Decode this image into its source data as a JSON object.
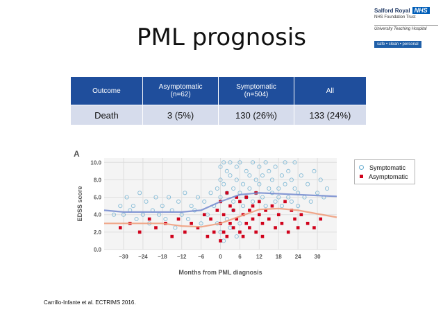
{
  "slide": {
    "title": "PML prognosis",
    "citation": "Carrillo-Infante et al. ECTRIMS 2016."
  },
  "logo": {
    "org": "Salford Royal",
    "nhs": "NHS",
    "trust": "NHS Foundation Trust",
    "hospital": "University Teaching Hospital",
    "tagline": "safe • clean • personal"
  },
  "table": {
    "headers": [
      {
        "line1": "Outcome",
        "line2": ""
      },
      {
        "line1": "Asymptomatic",
        "line2": "(n=62)"
      },
      {
        "line1": "Symptomatic",
        "line2": "(n=504)"
      },
      {
        "line1": "All",
        "line2": ""
      }
    ],
    "rows": [
      [
        "Death",
        "3 (5%)",
        "130 (26%)",
        "133 (24%)"
      ]
    ]
  },
  "legend": {
    "symptomatic": "Symptomatic",
    "asymptomatic": "Asymptomatic"
  },
  "colors": {
    "table_header": "#1f4e9c",
    "table_row": "#d6dcec",
    "symptomatic": "#6aaed0",
    "asymptomatic": "#d0021b",
    "symptomatic_line": "#7a8fd0",
    "asymptomatic_line": "#f0a080"
  },
  "chart_data": {
    "type": "scatter",
    "panel_label": "A",
    "xlabel": "Months from PML diagnosis",
    "ylabel": "EDSS score",
    "xlim": [
      -36,
      36
    ],
    "ylim": [
      0,
      10.5
    ],
    "x_ticks": [
      -30,
      -24,
      -18,
      -12,
      -6,
      0,
      6,
      12,
      18,
      24,
      30
    ],
    "x_tick_labels": [
      "−30",
      "−24",
      "−18",
      "−12",
      "−6",
      "0",
      "6",
      "12",
      "18",
      "24",
      "30"
    ],
    "y_ticks": [
      0,
      2,
      4,
      6,
      8,
      10
    ],
    "y_tick_labels": [
      "0.0",
      "2.0",
      "4.0",
      "6.0",
      "8.0",
      "10.0"
    ],
    "grid": true,
    "series": [
      {
        "name": "Symptomatic",
        "marker": "circle",
        "points": [
          [
            -33,
            4.0
          ],
          [
            -31,
            5.0
          ],
          [
            -30,
            4.0
          ],
          [
            -29,
            6.0
          ],
          [
            -28,
            4.5
          ],
          [
            -27,
            5.0
          ],
          [
            -26,
            3.5
          ],
          [
            -25,
            6.5
          ],
          [
            -24,
            4.0
          ],
          [
            -23,
            5.5
          ],
          [
            -22,
            3.0
          ],
          [
            -21,
            4.5
          ],
          [
            -20,
            6.0
          ],
          [
            -19,
            4.0
          ],
          [
            -18,
            5.0
          ],
          [
            -17,
            3.5
          ],
          [
            -16,
            6.0
          ],
          [
            -15,
            4.5
          ],
          [
            -14,
            2.5
          ],
          [
            -13,
            5.5
          ],
          [
            -12,
            4.0
          ],
          [
            -11,
            6.5
          ],
          [
            -10,
            3.5
          ],
          [
            -9,
            5.0
          ],
          [
            -8,
            4.5
          ],
          [
            -7,
            6.0
          ],
          [
            -6,
            3.0
          ],
          [
            -5,
            5.5
          ],
          [
            -4,
            4.0
          ],
          [
            -3,
            6.5
          ],
          [
            -2,
            5.0
          ],
          [
            -1,
            7.0
          ],
          [
            0,
            6.0
          ],
          [
            0,
            8.0
          ],
          [
            0,
            9.5
          ],
          [
            1,
            10.0
          ],
          [
            1,
            7.5
          ],
          [
            2,
            9.0
          ],
          [
            2,
            6.5
          ],
          [
            3,
            8.5
          ],
          [
            3,
            10.0
          ],
          [
            4,
            7.0
          ],
          [
            4,
            5.5
          ],
          [
            5,
            9.5
          ],
          [
            5,
            8.0
          ],
          [
            6,
            6.5
          ],
          [
            6,
            10.0
          ],
          [
            7,
            7.5
          ],
          [
            7,
            5.0
          ],
          [
            8,
            9.0
          ],
          [
            8,
            6.0
          ],
          [
            9,
            8.5
          ],
          [
            9,
            7.0
          ],
          [
            10,
            10.0
          ],
          [
            10,
            5.5
          ],
          [
            11,
            8.0
          ],
          [
            11,
            6.5
          ],
          [
            12,
            9.5
          ],
          [
            12,
            7.5
          ],
          [
            13,
            6.0
          ],
          [
            13,
            8.5
          ],
          [
            14,
            10.0
          ],
          [
            14,
            5.0
          ],
          [
            15,
            7.0
          ],
          [
            15,
            9.0
          ],
          [
            16,
            6.5
          ],
          [
            16,
            8.0
          ],
          [
            17,
            5.5
          ],
          [
            17,
            9.5
          ],
          [
            18,
            7.0
          ],
          [
            18,
            6.0
          ],
          [
            19,
            8.5
          ],
          [
            19,
            5.0
          ],
          [
            20,
            10.0
          ],
          [
            20,
            7.5
          ],
          [
            21,
            6.0
          ],
          [
            21,
            9.0
          ],
          [
            22,
            5.5
          ],
          [
            22,
            8.0
          ],
          [
            23,
            7.0
          ],
          [
            23,
            10.0
          ],
          [
            24,
            6.5
          ],
          [
            24,
            5.0
          ],
          [
            25,
            8.5
          ],
          [
            26,
            6.0
          ],
          [
            27,
            7.5
          ],
          [
            28,
            5.5
          ],
          [
            29,
            9.0
          ],
          [
            30,
            6.5
          ],
          [
            31,
            8.0
          ],
          [
            32,
            6.0
          ],
          [
            33,
            7.0
          ],
          [
            -1,
            3.0
          ],
          [
            0,
            2.0
          ],
          [
            1,
            1.0
          ],
          [
            2,
            3.5
          ],
          [
            3,
            2.5
          ],
          [
            4,
            4.5
          ],
          [
            5,
            1.5
          ],
          [
            6,
            3.0
          ]
        ]
      },
      {
        "name": "Asymptomatic",
        "marker": "square",
        "points": [
          [
            -31,
            2.5
          ],
          [
            -28,
            3.0
          ],
          [
            -25,
            2.0
          ],
          [
            -22,
            3.5
          ],
          [
            -20,
            2.5
          ],
          [
            -17,
            3.0
          ],
          [
            -15,
            1.5
          ],
          [
            -13,
            3.5
          ],
          [
            -11,
            2.0
          ],
          [
            -9,
            3.0
          ],
          [
            -7,
            2.5
          ],
          [
            -5,
            4.0
          ],
          [
            -4,
            1.5
          ],
          [
            -3,
            3.5
          ],
          [
            -2,
            2.0
          ],
          [
            -1,
            4.5
          ],
          [
            0,
            1.0
          ],
          [
            0,
            3.0
          ],
          [
            0,
            5.5
          ],
          [
            1,
            2.0
          ],
          [
            1,
            4.0
          ],
          [
            2,
            6.5
          ],
          [
            2,
            1.5
          ],
          [
            3,
            3.0
          ],
          [
            3,
            5.0
          ],
          [
            4,
            2.5
          ],
          [
            4,
            4.5
          ],
          [
            5,
            6.0
          ],
          [
            5,
            3.5
          ],
          [
            6,
            2.0
          ],
          [
            6,
            5.5
          ],
          [
            7,
            4.0
          ],
          [
            7,
            1.5
          ],
          [
            8,
            3.0
          ],
          [
            8,
            6.0
          ],
          [
            9,
            4.5
          ],
          [
            9,
            2.5
          ],
          [
            10,
            5.0
          ],
          [
            10,
            3.5
          ],
          [
            11,
            6.5
          ],
          [
            11,
            2.0
          ],
          [
            12,
            4.0
          ],
          [
            12,
            5.5
          ],
          [
            13,
            3.0
          ],
          [
            13,
            1.5
          ],
          [
            14,
            4.5
          ],
          [
            15,
            3.5
          ],
          [
            16,
            5.0
          ],
          [
            17,
            2.5
          ],
          [
            18,
            4.0
          ],
          [
            19,
            3.0
          ],
          [
            20,
            5.5
          ],
          [
            21,
            2.0
          ],
          [
            22,
            4.5
          ],
          [
            23,
            3.5
          ],
          [
            24,
            2.5
          ],
          [
            25,
            4.0
          ],
          [
            27,
            3.0
          ],
          [
            29,
            2.5
          ],
          [
            31,
            3.5
          ]
        ]
      }
    ],
    "trend_lines": [
      {
        "series": "Symptomatic",
        "points": [
          [
            -36,
            4.5
          ],
          [
            -30,
            4.3
          ],
          [
            -24,
            4.3
          ],
          [
            -18,
            4.3
          ],
          [
            -12,
            4.3
          ],
          [
            -6,
            4.5
          ],
          [
            0,
            5.5
          ],
          [
            6,
            6.3
          ],
          [
            12,
            6.5
          ],
          [
            18,
            6.4
          ],
          [
            24,
            6.3
          ],
          [
            30,
            6.2
          ],
          [
            36,
            6.1
          ]
        ]
      },
      {
        "series": "Asymptomatic",
        "points": [
          [
            -36,
            3.0
          ],
          [
            -30,
            3.0
          ],
          [
            -24,
            3.0
          ],
          [
            -18,
            3.0
          ],
          [
            -12,
            2.7
          ],
          [
            -6,
            2.6
          ],
          [
            0,
            3.0
          ],
          [
            6,
            3.8
          ],
          [
            12,
            4.6
          ],
          [
            18,
            4.7
          ],
          [
            24,
            4.5
          ],
          [
            30,
            4.1
          ],
          [
            36,
            3.7
          ]
        ]
      }
    ]
  }
}
